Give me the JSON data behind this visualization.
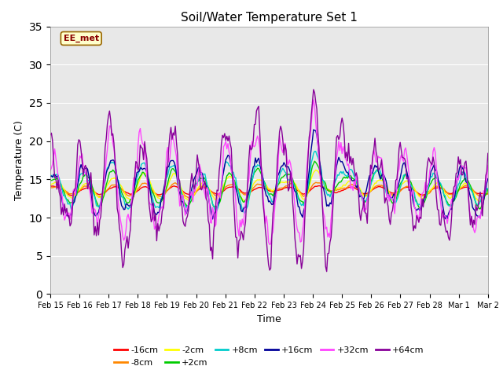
{
  "title": "Soil/Water Temperature Set 1",
  "xlabel": "Time",
  "ylabel": "Temperature (C)",
  "ylim": [
    0,
    35
  ],
  "yticks": [
    0,
    5,
    10,
    15,
    20,
    25,
    30,
    35
  ],
  "annotation": "EE_met",
  "bg_color": "#ffffff",
  "plot_bg": "#e8e8e8",
  "series_colors": {
    "-16cm": "#ff0000",
    "-8cm": "#ff8800",
    "-2cm": "#ffff00",
    "+2cm": "#00cc00",
    "+8cm": "#00cccc",
    "+16cm": "#000099",
    "+32cm": "#ff44ff",
    "+64cm": "#880099"
  },
  "x_tick_labels": [
    "Feb 15",
    "Feb 16",
    "Feb 17",
    "Feb 18",
    "Feb 19",
    "Feb 20",
    "Feb 21",
    "Feb 22",
    "Feb 23",
    "Feb 24",
    "Feb 25",
    "Feb 26",
    "Feb 27",
    "Feb 28",
    "Mar 1",
    "Mar 2"
  ],
  "num_points": 400
}
